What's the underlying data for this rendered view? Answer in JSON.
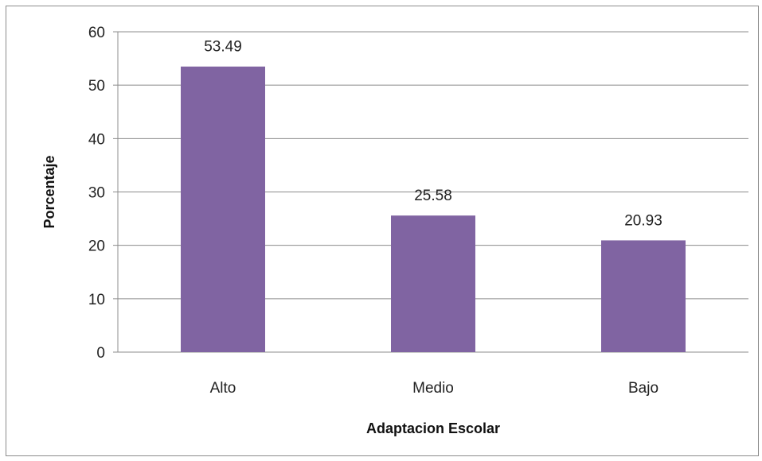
{
  "chart_data": {
    "type": "bar",
    "categories": [
      "Alto",
      "Medio",
      "Bajo"
    ],
    "values": [
      53.49,
      25.58,
      20.93
    ],
    "data_labels": [
      "53.49",
      "25.58",
      "20.93"
    ],
    "title": "",
    "xlabel": "Adaptacion Escolar",
    "ylabel": "Porcentaje",
    "ylim": [
      0,
      60
    ],
    "yticks": [
      0,
      10,
      20,
      30,
      40,
      50,
      60
    ],
    "grid": true,
    "legend": "none",
    "bar_color": "#8064A2",
    "grid_color": "#8c8c8c"
  }
}
